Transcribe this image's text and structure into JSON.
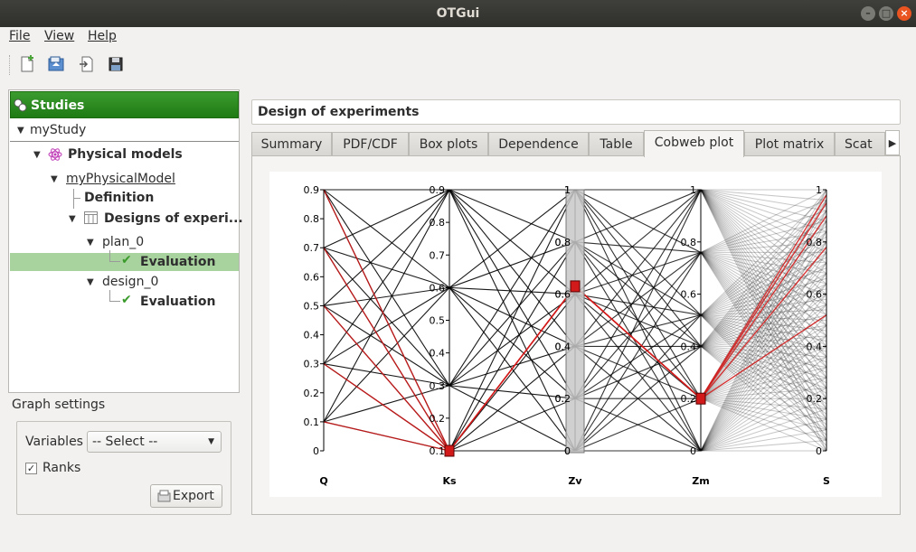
{
  "window": {
    "title": "OTGui"
  },
  "menu": {
    "file": "File",
    "view": "View",
    "help": "Help"
  },
  "toolbar": {
    "icons": [
      "new-study-icon",
      "open-study-icon",
      "import-python-icon",
      "save-icon"
    ]
  },
  "tree": {
    "header": "Studies",
    "study": "myStudy",
    "physical_models": "Physical models",
    "physical_model": "myPhysicalModel",
    "definition": "Definition",
    "designs": "Designs of experi...",
    "plan": "plan_0",
    "plan_eval": "Evaluation",
    "design": "design_0",
    "design_eval": "Evaluation"
  },
  "graph_settings": {
    "label": "Graph settings",
    "variables_label": "Variables",
    "variables_value": "-- Select --",
    "ranks_label": "Ranks",
    "ranks_checked": true,
    "export_label": "Export"
  },
  "main": {
    "title": "Design of experiments",
    "tabs": [
      "Summary",
      "PDF/CDF",
      "Box plots",
      "Dependence",
      "Table",
      "Cobweb plot",
      "Plot matrix",
      "Scat"
    ],
    "active_tab": "Cobweb plot"
  },
  "chart_data": {
    "type": "parallel-coordinates",
    "axes": [
      {
        "name": "Q",
        "ticks": [
          "0",
          "0.1",
          "0.2",
          "0.3",
          "0.4",
          "0.5",
          "0.6",
          "0.7",
          "0.8",
          "0.9"
        ],
        "range": [
          0,
          0.9
        ]
      },
      {
        "name": "Ks",
        "ticks": [
          "0.1",
          "0.2",
          "0.3",
          "0.4",
          "0.5",
          "0.6",
          "0.7",
          "0.8",
          "0.9"
        ],
        "range": [
          0.1,
          0.9
        ]
      },
      {
        "name": "Zv",
        "ticks": [
          "0",
          "0.2",
          "0.4",
          "0.6",
          "0.8",
          "1"
        ],
        "range": [
          0,
          1
        ]
      },
      {
        "name": "Zm",
        "ticks": [
          "0",
          "0.2",
          "0.4",
          "0.6",
          "0.8",
          "1"
        ],
        "range": [
          0,
          1
        ]
      },
      {
        "name": "S",
        "ticks": [
          "0",
          "0.2",
          "0.4",
          "0.6",
          "0.8",
          "1"
        ],
        "range": [
          0,
          1
        ]
      }
    ],
    "levels": {
      "Q": [
        0.9,
        0.7,
        0.5,
        0.3,
        0.1
      ],
      "Ks": [
        0.9,
        0.6,
        0.3,
        0.1
      ],
      "Zv": [
        1.0,
        0.8,
        0.6,
        0.4,
        0.2,
        0.0
      ],
      "Zm": [
        1.0,
        0.76,
        0.52,
        0.4,
        0.2,
        0.0
      ]
    },
    "selection": {
      "Ks": [
        0.1,
        0.1
      ],
      "Zv": [
        0.63,
        0.63
      ],
      "Zm": [
        0.2,
        0.2
      ]
    },
    "selected_color": "#d21a1a",
    "line_color": "#000000"
  }
}
